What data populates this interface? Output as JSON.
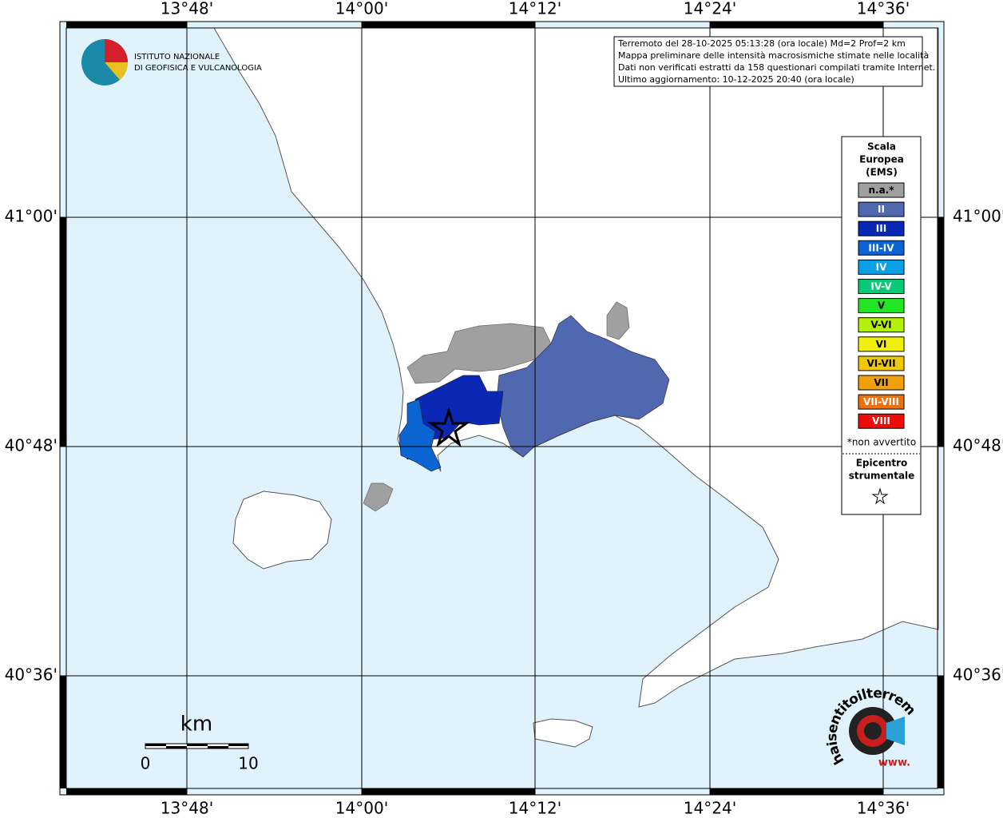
{
  "axis": {
    "top": [
      "13°48'",
      "14°00'",
      "14°12'",
      "14°24'",
      "14°36'"
    ],
    "bottom": [
      "13°48'",
      "14°00'",
      "14°12'",
      "14°24'",
      "14°36'"
    ],
    "left": [
      "41°00'",
      "40°48'",
      "40°36'"
    ],
    "right": [
      "41°00'",
      "40°48'",
      "40°36'"
    ]
  },
  "logo": {
    "line1": "ISTITUTO NAZIONALE",
    "line2": "DI GEOFISICA E VULCANOLOGIA"
  },
  "info": [
    "Terremoto del 28-10-2025 05:13:28 (ora locale) Md=2 Prof=2 km",
    "Mappa preliminare delle intensità macrosismiche stimate nelle località",
    "Dati non verificati estratti da 158 questionari compilati tramite Internet.",
    "Ultimo aggiornamento: 10-12-2025 20:40 (ora locale)"
  ],
  "legend": {
    "title": [
      "Scala",
      "Europea",
      "(EMS)"
    ],
    "items": [
      {
        "label": "n.a.*",
        "color": "#a0a0a0"
      },
      {
        "label": "II",
        "color": "#5068b0"
      },
      {
        "label": "III",
        "color": "#0a28b4"
      },
      {
        "label": "III-IV",
        "color": "#0a64d2"
      },
      {
        "label": "IV",
        "color": "#0aa0e6"
      },
      {
        "label": "IV-V",
        "color": "#0ac878"
      },
      {
        "label": "V",
        "color": "#22e622"
      },
      {
        "label": "V-VI",
        "color": "#b4f00a"
      },
      {
        "label": "VI",
        "color": "#f0f00a"
      },
      {
        "label": "VI-VII",
        "color": "#f0c80a"
      },
      {
        "label": "VII",
        "color": "#f0a00a"
      },
      {
        "label": "VII-VIII",
        "color": "#f0700a"
      },
      {
        "label": "VIII",
        "color": "#f00a0a"
      }
    ],
    "note": "*non avvertito",
    "epicenter": [
      "Epicentro",
      "strumentale"
    ]
  },
  "scale_bar": {
    "unit": "km",
    "labels": [
      "0",
      "10"
    ]
  },
  "brand": {
    "text": "haisentitoilterremoto.it",
    "www": "www."
  }
}
